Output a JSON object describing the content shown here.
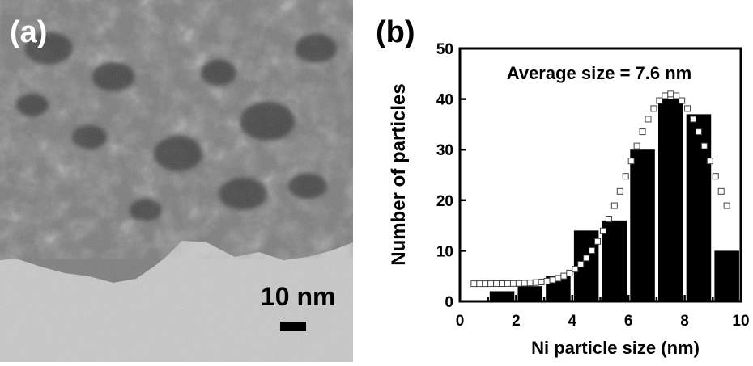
{
  "panel_a": {
    "label": "(a)",
    "scale_bar_label": "10 nm"
  },
  "panel_b": {
    "label": "(b)"
  },
  "chart_data": {
    "type": "bar",
    "annotation": "Average size = 7.6 nm",
    "xlabel": "Ni particle size (nm)",
    "ylabel": "Number of particles",
    "xlim": [
      0,
      10
    ],
    "ylim": [
      0,
      50
    ],
    "xticks": [
      0,
      2,
      4,
      6,
      8,
      10
    ],
    "yticks": [
      0,
      10,
      20,
      30,
      40,
      50
    ],
    "grid": false,
    "series": [
      {
        "type": "bar",
        "bin_centers": [
          0.5,
          1.5,
          2.5,
          3.5,
          4.5,
          5.5,
          6.5,
          7.5,
          8.5,
          9.5
        ],
        "values": [
          0,
          2,
          3,
          5,
          14,
          16,
          30,
          40,
          37,
          10
        ]
      },
      {
        "type": "fit",
        "marker": "open-square",
        "baseline": 3.5,
        "peak": 41,
        "center": 7.5,
        "width": 1.5,
        "x_range": [
          0.5,
          9.5
        ]
      }
    ]
  }
}
